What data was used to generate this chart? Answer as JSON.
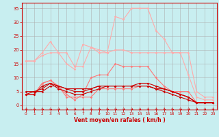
{
  "bg_color": "#c8eef0",
  "grid_color": "#aaaaaa",
  "xlabel": "Vent moyen/en rafales ( km/h )",
  "xlabel_color": "#cc0000",
  "tick_color": "#cc0000",
  "xticks": [
    0,
    1,
    2,
    3,
    4,
    5,
    6,
    7,
    8,
    9,
    10,
    11,
    12,
    13,
    14,
    15,
    16,
    17,
    18,
    19,
    20,
    21,
    22,
    23
  ],
  "yticks": [
    0,
    5,
    10,
    15,
    20,
    25,
    30,
    35
  ],
  "ylim": [
    -1.5,
    37
  ],
  "xlim": [
    -0.5,
    23.5
  ],
  "series": [
    {
      "color": "#ffaaaa",
      "x": [
        0,
        1,
        2,
        3,
        4,
        5,
        6,
        7,
        8,
        9,
        10,
        11,
        12,
        13,
        14,
        15,
        16,
        17,
        18,
        19,
        20,
        21,
        22,
        23
      ],
      "y": [
        16,
        16,
        19,
        23,
        19,
        19,
        14,
        14,
        21,
        20,
        19,
        20,
        20,
        19,
        19,
        19,
        19,
        19,
        19,
        19,
        19,
        5,
        3,
        3
      ]
    },
    {
      "color": "#ffaaaa",
      "x": [
        0,
        1,
        2,
        3,
        4,
        5,
        6,
        7,
        8,
        9,
        10,
        11,
        12,
        13,
        14,
        15,
        16,
        17,
        18,
        19,
        20,
        21,
        22,
        23
      ],
      "y": [
        16,
        16,
        18,
        19,
        19,
        15,
        13,
        22,
        21,
        19,
        19,
        32,
        31,
        35,
        35,
        35,
        27,
        24,
        19,
        19,
        11,
        3,
        2,
        2
      ]
    },
    {
      "color": "#ff7777",
      "x": [
        0,
        1,
        2,
        3,
        4,
        5,
        6,
        7,
        8,
        9,
        10,
        11,
        12,
        13,
        14,
        15,
        16,
        17,
        18,
        19,
        20,
        21,
        22,
        23
      ],
      "y": [
        4,
        4,
        8,
        9,
        7,
        4,
        2,
        4,
        10,
        11,
        11,
        15,
        14,
        14,
        14,
        14,
        10,
        7,
        5,
        5,
        5,
        1,
        1,
        1
      ]
    },
    {
      "color": "#ff7777",
      "x": [
        0,
        1,
        2,
        3,
        4,
        5,
        6,
        7,
        8,
        9,
        10,
        11,
        12,
        13,
        14,
        15,
        16,
        17,
        18,
        19,
        20,
        21,
        22,
        23
      ],
      "y": [
        4,
        4,
        8,
        9,
        7,
        3,
        3,
        3,
        3,
        6,
        6,
        6,
        6,
        6,
        7,
        7,
        6,
        6,
        5,
        4,
        3,
        1,
        1,
        1
      ]
    },
    {
      "color": "#cc0000",
      "x": [
        0,
        1,
        2,
        3,
        4,
        5,
        6,
        7,
        8,
        9,
        10,
        11,
        12,
        13,
        14,
        15,
        16,
        17,
        18,
        19,
        20,
        21,
        22,
        23
      ],
      "y": [
        4,
        5,
        5,
        7,
        7,
        6,
        6,
        6,
        6,
        7,
        7,
        7,
        7,
        7,
        7,
        7,
        6,
        6,
        5,
        4,
        3,
        1,
        1,
        1
      ]
    },
    {
      "color": "#cc0000",
      "x": [
        0,
        1,
        2,
        3,
        4,
        5,
        6,
        7,
        8,
        9,
        10,
        11,
        12,
        13,
        14,
        15,
        16,
        17,
        18,
        19,
        20,
        21,
        22,
        23
      ],
      "y": [
        4,
        4,
        7,
        8,
        6,
        5,
        4,
        4,
        5,
        6,
        7,
        7,
        7,
        7,
        7,
        7,
        6,
        5,
        4,
        3,
        2,
        1,
        1,
        1
      ]
    },
    {
      "color": "#cc0000",
      "x": [
        0,
        1,
        2,
        3,
        4,
        5,
        6,
        7,
        8,
        9,
        10,
        11,
        12,
        13,
        14,
        15,
        16,
        17,
        18,
        19,
        20,
        21,
        22,
        23
      ],
      "y": [
        5,
        5,
        6,
        8,
        7,
        6,
        5,
        5,
        6,
        7,
        7,
        7,
        7,
        7,
        8,
        8,
        7,
        6,
        5,
        4,
        3,
        1,
        1,
        1
      ]
    }
  ]
}
